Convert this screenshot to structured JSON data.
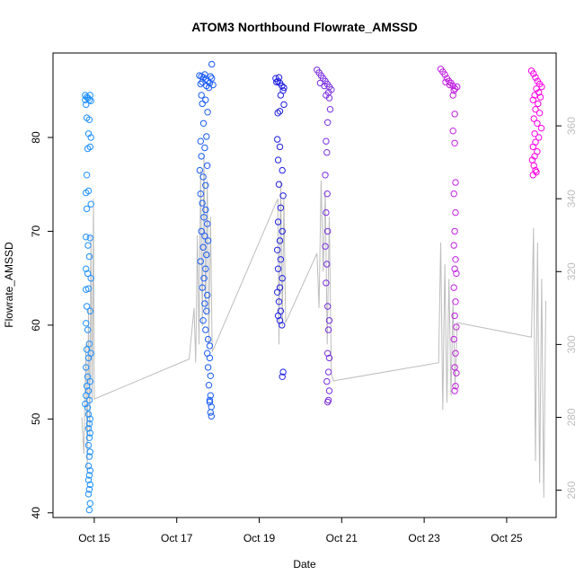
{
  "chart_data": {
    "type": "scatter",
    "title": "ATOM3 Northbound Flowrate_AMSSD",
    "xlabel": "Date",
    "ylabel": "Flowrate_AMSSD",
    "x_ticks": [
      "Oct 15",
      "Oct 17",
      "Oct 19",
      "Oct 21",
      "Oct 23",
      "Oct 25"
    ],
    "x_tick_days": [
      15,
      17,
      19,
      21,
      23,
      25
    ],
    "xlim_days": [
      14.0,
      26.2
    ],
    "ylim": [
      39.5,
      89.0
    ],
    "y_ticks": [
      40,
      50,
      60,
      70,
      80
    ],
    "ylim_right": [
      252.5,
      380.0
    ],
    "y_ticks_right": [
      260,
      280,
      300,
      320,
      340,
      360
    ],
    "colors": {
      "axis": "#000000",
      "secondary_line": "#bdbdbd",
      "secondary_ticks": "#bdbdbd"
    },
    "series": [
      {
        "color": "#1e90ff",
        "points": [
          [
            14.78,
            84.5
          ],
          [
            14.78,
            84.0
          ],
          [
            14.8,
            83.5
          ],
          [
            14.82,
            84.3
          ],
          [
            14.85,
            84.2
          ],
          [
            14.88,
            84.0
          ],
          [
            14.9,
            84.5
          ],
          [
            14.92,
            83.9
          ],
          [
            14.82,
            82.1
          ],
          [
            14.88,
            81.9
          ],
          [
            14.86,
            80.4
          ],
          [
            14.92,
            80.0
          ],
          [
            14.84,
            78.8
          ],
          [
            14.9,
            79.0
          ],
          [
            14.82,
            76.0
          ],
          [
            14.8,
            74.1
          ],
          [
            14.86,
            74.3
          ],
          [
            14.92,
            72.9
          ],
          [
            14.82,
            72.4
          ],
          [
            14.8,
            69.4
          ],
          [
            14.9,
            69.3
          ],
          [
            14.85,
            68.5
          ],
          [
            14.88,
            67.3
          ],
          [
            14.8,
            66.0
          ],
          [
            14.84,
            65.5
          ],
          [
            14.92,
            65.0
          ],
          [
            14.8,
            63.8
          ],
          [
            14.86,
            63.9
          ],
          [
            14.82,
            62.0
          ],
          [
            14.9,
            61.5
          ],
          [
            14.8,
            60.2
          ],
          [
            14.84,
            59.5
          ],
          [
            14.88,
            58.0
          ],
          [
            14.82,
            57.4
          ],
          [
            14.92,
            57.0
          ],
          [
            14.86,
            56.5
          ],
          [
            14.8,
            55.5
          ],
          [
            14.84,
            54.5
          ],
          [
            14.9,
            54.0
          ],
          [
            14.82,
            53.5
          ],
          [
            14.86,
            53.0
          ],
          [
            14.8,
            52.5
          ],
          [
            14.88,
            52.0
          ],
          [
            14.78,
            51.6
          ],
          [
            14.84,
            51.2
          ],
          [
            14.86,
            50.5
          ],
          [
            14.9,
            50.0
          ],
          [
            14.88,
            49.5
          ],
          [
            14.86,
            49.0
          ],
          [
            14.9,
            48.5
          ],
          [
            14.88,
            48.0
          ],
          [
            14.86,
            47.2
          ],
          [
            14.9,
            46.5
          ],
          [
            14.88,
            46.0
          ],
          [
            14.86,
            45.0
          ],
          [
            14.9,
            44.5
          ],
          [
            14.88,
            44.0
          ],
          [
            14.86,
            43.5
          ],
          [
            14.9,
            43.0
          ],
          [
            14.88,
            42.5
          ],
          [
            14.86,
            42.0
          ],
          [
            14.9,
            41.0
          ],
          [
            14.88,
            40.3
          ]
        ]
      },
      {
        "color": "#1a5cf5",
        "points": [
          [
            17.55,
            86.6
          ],
          [
            17.6,
            86.5
          ],
          [
            17.65,
            86.4
          ],
          [
            17.7,
            86.2
          ],
          [
            17.75,
            86.0
          ],
          [
            17.8,
            85.8
          ],
          [
            17.85,
            86.3
          ],
          [
            17.62,
            85.9
          ],
          [
            17.68,
            86.7
          ],
          [
            17.72,
            85.5
          ],
          [
            17.78,
            85.3
          ],
          [
            17.82,
            86.5
          ],
          [
            17.58,
            85.7
          ],
          [
            17.85,
            87.8
          ],
          [
            17.88,
            85.6
          ],
          [
            17.6,
            84.5
          ],
          [
            17.7,
            84.0
          ],
          [
            17.62,
            83.6
          ],
          [
            17.75,
            82.7
          ],
          [
            17.65,
            81.5
          ],
          [
            17.72,
            80.1
          ],
          [
            17.58,
            79.6
          ],
          [
            17.68,
            78.9
          ],
          [
            17.6,
            78.0
          ],
          [
            17.74,
            77.0
          ],
          [
            17.56,
            76.5
          ],
          [
            17.64,
            75.8
          ],
          [
            17.7,
            74.9
          ],
          [
            17.58,
            74.0
          ],
          [
            17.62,
            73.0
          ],
          [
            17.7,
            72.3
          ],
          [
            17.66,
            71.5
          ],
          [
            17.74,
            70.8
          ],
          [
            17.6,
            70.0
          ],
          [
            17.68,
            69.5
          ],
          [
            17.76,
            69.0
          ],
          [
            17.64,
            68.3
          ],
          [
            17.72,
            67.5
          ],
          [
            17.58,
            66.8
          ],
          [
            17.7,
            66.0
          ],
          [
            17.66,
            65.0
          ],
          [
            17.62,
            64.0
          ],
          [
            17.74,
            63.2
          ],
          [
            17.68,
            62.3
          ],
          [
            17.72,
            61.5
          ],
          [
            17.64,
            60.5
          ],
          [
            17.7,
            59.5
          ],
          [
            17.76,
            58.5
          ],
          [
            17.8,
            57.8
          ],
          [
            17.74,
            57.0
          ],
          [
            17.8,
            56.5
          ],
          [
            17.76,
            55.5
          ],
          [
            17.82,
            54.6
          ],
          [
            17.78,
            53.6
          ],
          [
            17.82,
            52.5
          ],
          [
            17.8,
            52.0
          ],
          [
            17.84,
            51.3
          ],
          [
            17.82,
            50.7
          ],
          [
            17.84,
            50.3
          ],
          [
            17.8,
            51.8
          ]
        ]
      },
      {
        "color": "#2020e0",
        "points": [
          [
            19.4,
            86.3
          ],
          [
            19.45,
            86.0
          ],
          [
            19.5,
            85.8
          ],
          [
            19.55,
            85.5
          ],
          [
            19.6,
            85.3
          ],
          [
            19.48,
            86.4
          ],
          [
            19.42,
            85.9
          ],
          [
            19.58,
            85.0
          ],
          [
            19.52,
            84.5
          ],
          [
            19.6,
            83.5
          ],
          [
            19.5,
            82.8
          ],
          [
            19.45,
            82.6
          ],
          [
            19.44,
            79.8
          ],
          [
            19.5,
            79.0
          ],
          [
            19.46,
            77.6
          ],
          [
            19.56,
            76.5
          ],
          [
            19.48,
            75.0
          ],
          [
            19.58,
            73.8
          ],
          [
            19.52,
            72.5
          ],
          [
            19.46,
            71.0
          ],
          [
            19.56,
            70.0
          ],
          [
            19.5,
            69.0
          ],
          [
            19.44,
            68.0
          ],
          [
            19.52,
            67.0
          ],
          [
            19.46,
            66.0
          ],
          [
            19.56,
            65.0
          ],
          [
            19.5,
            64.0
          ],
          [
            19.44,
            63.5
          ],
          [
            19.48,
            62.5
          ],
          [
            19.52,
            61.5
          ],
          [
            19.46,
            61.0
          ],
          [
            19.5,
            60.5
          ],
          [
            19.55,
            60.0
          ],
          [
            19.58,
            55.0
          ],
          [
            19.56,
            54.5
          ]
        ]
      },
      {
        "color": "#7a2fe0",
        "points": [
          [
            20.4,
            87.2
          ],
          [
            20.45,
            86.9
          ],
          [
            20.5,
            86.6
          ],
          [
            20.55,
            86.3
          ],
          [
            20.6,
            86.0
          ],
          [
            20.65,
            85.7
          ],
          [
            20.7,
            85.4
          ],
          [
            20.75,
            85.1
          ],
          [
            20.48,
            85.8
          ],
          [
            20.58,
            85.5
          ],
          [
            20.68,
            84.8
          ],
          [
            20.62,
            84.5
          ],
          [
            20.7,
            84.2
          ],
          [
            20.72,
            83.0
          ],
          [
            20.66,
            81.6
          ],
          [
            20.62,
            79.6
          ],
          [
            20.64,
            78.4
          ],
          [
            20.6,
            76.0
          ],
          [
            20.65,
            74.0
          ],
          [
            20.62,
            72.0
          ],
          [
            20.66,
            70.0
          ],
          [
            20.6,
            68.4
          ],
          [
            20.64,
            66.5
          ],
          [
            20.62,
            64.5
          ],
          [
            20.66,
            62.0
          ],
          [
            20.7,
            60.5
          ],
          [
            20.68,
            59.5
          ],
          [
            20.66,
            57.0
          ],
          [
            20.7,
            56.5
          ],
          [
            20.68,
            55.0
          ],
          [
            20.64,
            54.0
          ],
          [
            20.7,
            53.0
          ],
          [
            20.68,
            52.0
          ],
          [
            20.66,
            51.8
          ]
        ]
      },
      {
        "color": "#c020e0",
        "points": [
          [
            23.4,
            87.3
          ],
          [
            23.45,
            87.0
          ],
          [
            23.5,
            86.7
          ],
          [
            23.55,
            86.3
          ],
          [
            23.6,
            86.0
          ],
          [
            23.65,
            85.8
          ],
          [
            23.7,
            85.5
          ],
          [
            23.75,
            85.2
          ],
          [
            23.8,
            85.4
          ],
          [
            23.52,
            85.9
          ],
          [
            23.62,
            85.6
          ],
          [
            23.72,
            85.0
          ],
          [
            23.7,
            84.5
          ],
          [
            23.74,
            82.5
          ],
          [
            23.7,
            80.7
          ],
          [
            23.74,
            79.4
          ],
          [
            23.76,
            75.2
          ],
          [
            23.72,
            74.0
          ],
          [
            23.76,
            72.0
          ],
          [
            23.74,
            70.0
          ],
          [
            23.72,
            68.5
          ],
          [
            23.76,
            67.0
          ],
          [
            23.74,
            66.0
          ],
          [
            23.78,
            65.5
          ],
          [
            23.72,
            64.0
          ],
          [
            23.76,
            62.5
          ],
          [
            23.74,
            61.0
          ],
          [
            23.78,
            59.8
          ],
          [
            23.72,
            58.5
          ],
          [
            23.76,
            57.0
          ],
          [
            23.74,
            55.5
          ],
          [
            23.78,
            54.9
          ],
          [
            23.76,
            53.5
          ],
          [
            23.74,
            53.0
          ]
        ]
      },
      {
        "color": "#ff00e6",
        "points": [
          [
            25.6,
            87.1
          ],
          [
            25.65,
            86.8
          ],
          [
            25.7,
            86.4
          ],
          [
            25.75,
            86.0
          ],
          [
            25.8,
            85.7
          ],
          [
            25.85,
            85.4
          ],
          [
            25.72,
            85.2
          ],
          [
            25.78,
            84.8
          ],
          [
            25.68,
            84.5
          ],
          [
            25.82,
            84.3
          ],
          [
            25.64,
            84.0
          ],
          [
            25.76,
            83.6
          ],
          [
            25.7,
            83.0
          ],
          [
            25.8,
            82.6
          ],
          [
            25.66,
            82.0
          ],
          [
            25.74,
            81.5
          ],
          [
            25.84,
            81.0
          ],
          [
            25.68,
            80.4
          ],
          [
            25.78,
            80.0
          ],
          [
            25.7,
            79.5
          ],
          [
            25.64,
            79.0
          ],
          [
            25.74,
            78.5
          ],
          [
            25.68,
            78.0
          ],
          [
            25.62,
            77.6
          ],
          [
            25.66,
            77.0
          ],
          [
            25.7,
            76.5
          ],
          [
            25.64,
            76.0
          ],
          [
            25.72,
            76.3
          ]
        ]
      }
    ],
    "secondary_series": {
      "color": "#bdbdbd",
      "axis": "right",
      "points": [
        [
          14.7,
          280
        ],
        [
          14.75,
          270
        ],
        [
          14.8,
          300
        ],
        [
          14.83,
          265
        ],
        [
          14.86,
          310
        ],
        [
          14.89,
          275
        ],
        [
          14.92,
          330
        ],
        [
          14.95,
          285
        ],
        [
          14.98,
          340
        ],
        [
          15.0,
          285
        ],
        [
          17.3,
          296
        ],
        [
          17.42,
          310
        ],
        [
          17.46,
          295
        ],
        [
          17.5,
          330
        ],
        [
          17.54,
          300
        ],
        [
          17.58,
          348
        ],
        [
          17.62,
          305
        ],
        [
          17.66,
          352
        ],
        [
          17.7,
          308
        ],
        [
          17.74,
          345
        ],
        [
          17.78,
          300
        ],
        [
          17.82,
          335
        ],
        [
          17.86,
          298
        ],
        [
          19.45,
          340
        ],
        [
          19.48,
          300
        ],
        [
          19.52,
          345
        ],
        [
          19.56,
          305
        ],
        [
          19.6,
          340
        ],
        [
          19.64,
          306
        ],
        [
          20.4,
          325
        ],
        [
          20.45,
          310
        ],
        [
          20.5,
          345
        ],
        [
          20.55,
          320
        ],
        [
          20.6,
          342
        ],
        [
          20.65,
          300
        ],
        [
          20.7,
          335
        ],
        [
          20.75,
          292
        ],
        [
          20.8,
          290
        ],
        [
          23.35,
          295
        ],
        [
          23.4,
          328
        ],
        [
          23.45,
          282
        ],
        [
          23.5,
          322
        ],
        [
          23.55,
          284
        ],
        [
          23.6,
          318
        ],
        [
          23.65,
          286
        ],
        [
          23.7,
          312
        ],
        [
          23.75,
          288
        ],
        [
          23.8,
          306
        ],
        [
          25.6,
          302
        ],
        [
          25.65,
          332
        ],
        [
          25.7,
          268
        ],
        [
          25.75,
          328
        ],
        [
          25.8,
          262
        ],
        [
          25.85,
          318
        ],
        [
          25.9,
          258
        ],
        [
          25.95,
          312
        ]
      ]
    }
  }
}
